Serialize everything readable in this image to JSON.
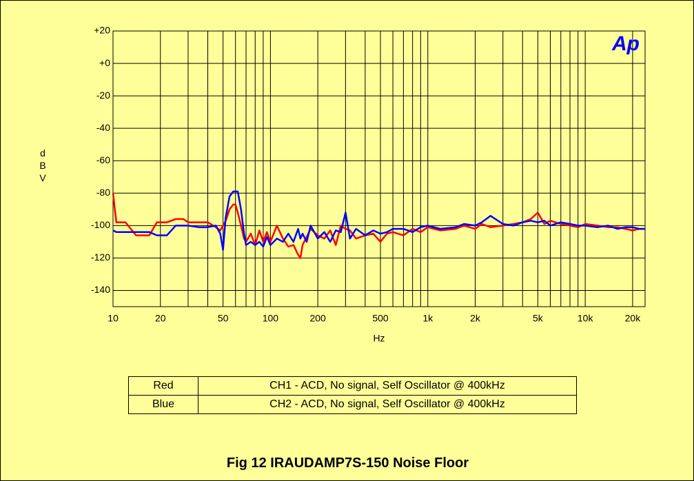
{
  "chart_data": {
    "type": "line",
    "title": "Fig 12 IRAUDAMP7S-150 Noise Floor",
    "xlabel": "Hz",
    "ylabel": "dBV",
    "logo": "Ap",
    "xlog": true,
    "grid": true,
    "xlim": [
      10,
      24000
    ],
    "ylim": [
      -150,
      20
    ],
    "xticks": [
      10,
      20,
      50,
      100,
      200,
      500,
      {
        "value": 1000,
        "label": "1k"
      },
      {
        "value": 2000,
        "label": "2k"
      },
      {
        "value": 5000,
        "label": "5k"
      },
      {
        "value": 10000,
        "label": "10k"
      },
      {
        "value": 20000,
        "label": "20k"
      }
    ],
    "xminor": [
      30,
      40,
      60,
      70,
      80,
      90,
      300,
      400,
      600,
      700,
      800,
      900,
      3000,
      4000,
      6000,
      7000,
      8000,
      9000
    ],
    "yticks": [
      {
        "value": 20,
        "label": "+20"
      },
      {
        "value": 0,
        "label": "+0"
      },
      -20,
      -40,
      -60,
      -80,
      -100,
      -120,
      -140
    ],
    "x": [
      10,
      10.5,
      12,
      14,
      15,
      17,
      19,
      20,
      22,
      25,
      28,
      30,
      35,
      40,
      45,
      48,
      50,
      52,
      55,
      58,
      60,
      62,
      65,
      68,
      70,
      75,
      80,
      85,
      90,
      95,
      100,
      110,
      120,
      130,
      140,
      150,
      155,
      160,
      170,
      180,
      200,
      220,
      240,
      260,
      280,
      300,
      320,
      350,
      400,
      450,
      500,
      550,
      600,
      700,
      800,
      900,
      1000,
      1200,
      1500,
      1700,
      2000,
      2200,
      2500,
      3000,
      3500,
      4000,
      4500,
      5000,
      5500,
      6000,
      7000,
      8000,
      9000,
      10000,
      12000,
      14000,
      16000,
      18000,
      20000,
      22000,
      24000
    ],
    "series": [
      {
        "label": "Red",
        "name": "CH1 - ACD, No signal, Self Oscillator @ 400kHz",
        "color": "#ff0000",
        "values": [
          -80,
          -98,
          -98,
          -106,
          -106,
          -106,
          -98,
          -98,
          -98,
          -96,
          -96,
          -98,
          -98,
          -98,
          -101,
          -103,
          -100,
          -97,
          -90,
          -87,
          -87,
          -92,
          -100,
          -108,
          -110,
          -105,
          -112,
          -103,
          -110,
          -104,
          -110,
          -100,
          -108,
          -113,
          -112,
          -118,
          -120,
          -112,
          -107,
          -102,
          -106,
          -108,
          -103,
          -112,
          -100,
          -102,
          -103,
          -108,
          -106,
          -105,
          -110,
          -105,
          -104,
          -106,
          -102,
          -104,
          -101,
          -103,
          -102,
          -100,
          -102,
          -99,
          -101,
          -100,
          -99,
          -98,
          -96,
          -92,
          -99,
          -97,
          -99,
          -100,
          -101,
          -99,
          -100,
          -101,
          -101,
          -102,
          -103,
          -102,
          -102
        ]
      },
      {
        "label": "Blue",
        "name": "CH2 - ACD, No signal, Self Oscillator @ 400kHz",
        "color": "#0000ff",
        "values": [
          -103,
          -104,
          -104,
          -104,
          -104,
          -104,
          -106,
          -106,
          -106,
          -100,
          -100,
          -100,
          -101,
          -101,
          -100,
          -105,
          -115,
          -95,
          -82,
          -79,
          -79,
          -79,
          -90,
          -105,
          -112,
          -110,
          -112,
          -110,
          -113,
          -107,
          -112,
          -108,
          -110,
          -105,
          -110,
          -102,
          -108,
          -105,
          -110,
          -100,
          -108,
          -104,
          -110,
          -103,
          -104,
          -92,
          -108,
          -102,
          -106,
          -103,
          -105,
          -104,
          -102,
          -102,
          -104,
          -101,
          -100,
          -102,
          -101,
          -99,
          -100,
          -98,
          -94,
          -99,
          -100,
          -98,
          -97,
          -98,
          -97,
          -100,
          -98,
          -99,
          -100,
          -100,
          -101,
          -100,
          -102,
          -101,
          -101,
          -102,
          -102
        ]
      }
    ]
  }
}
